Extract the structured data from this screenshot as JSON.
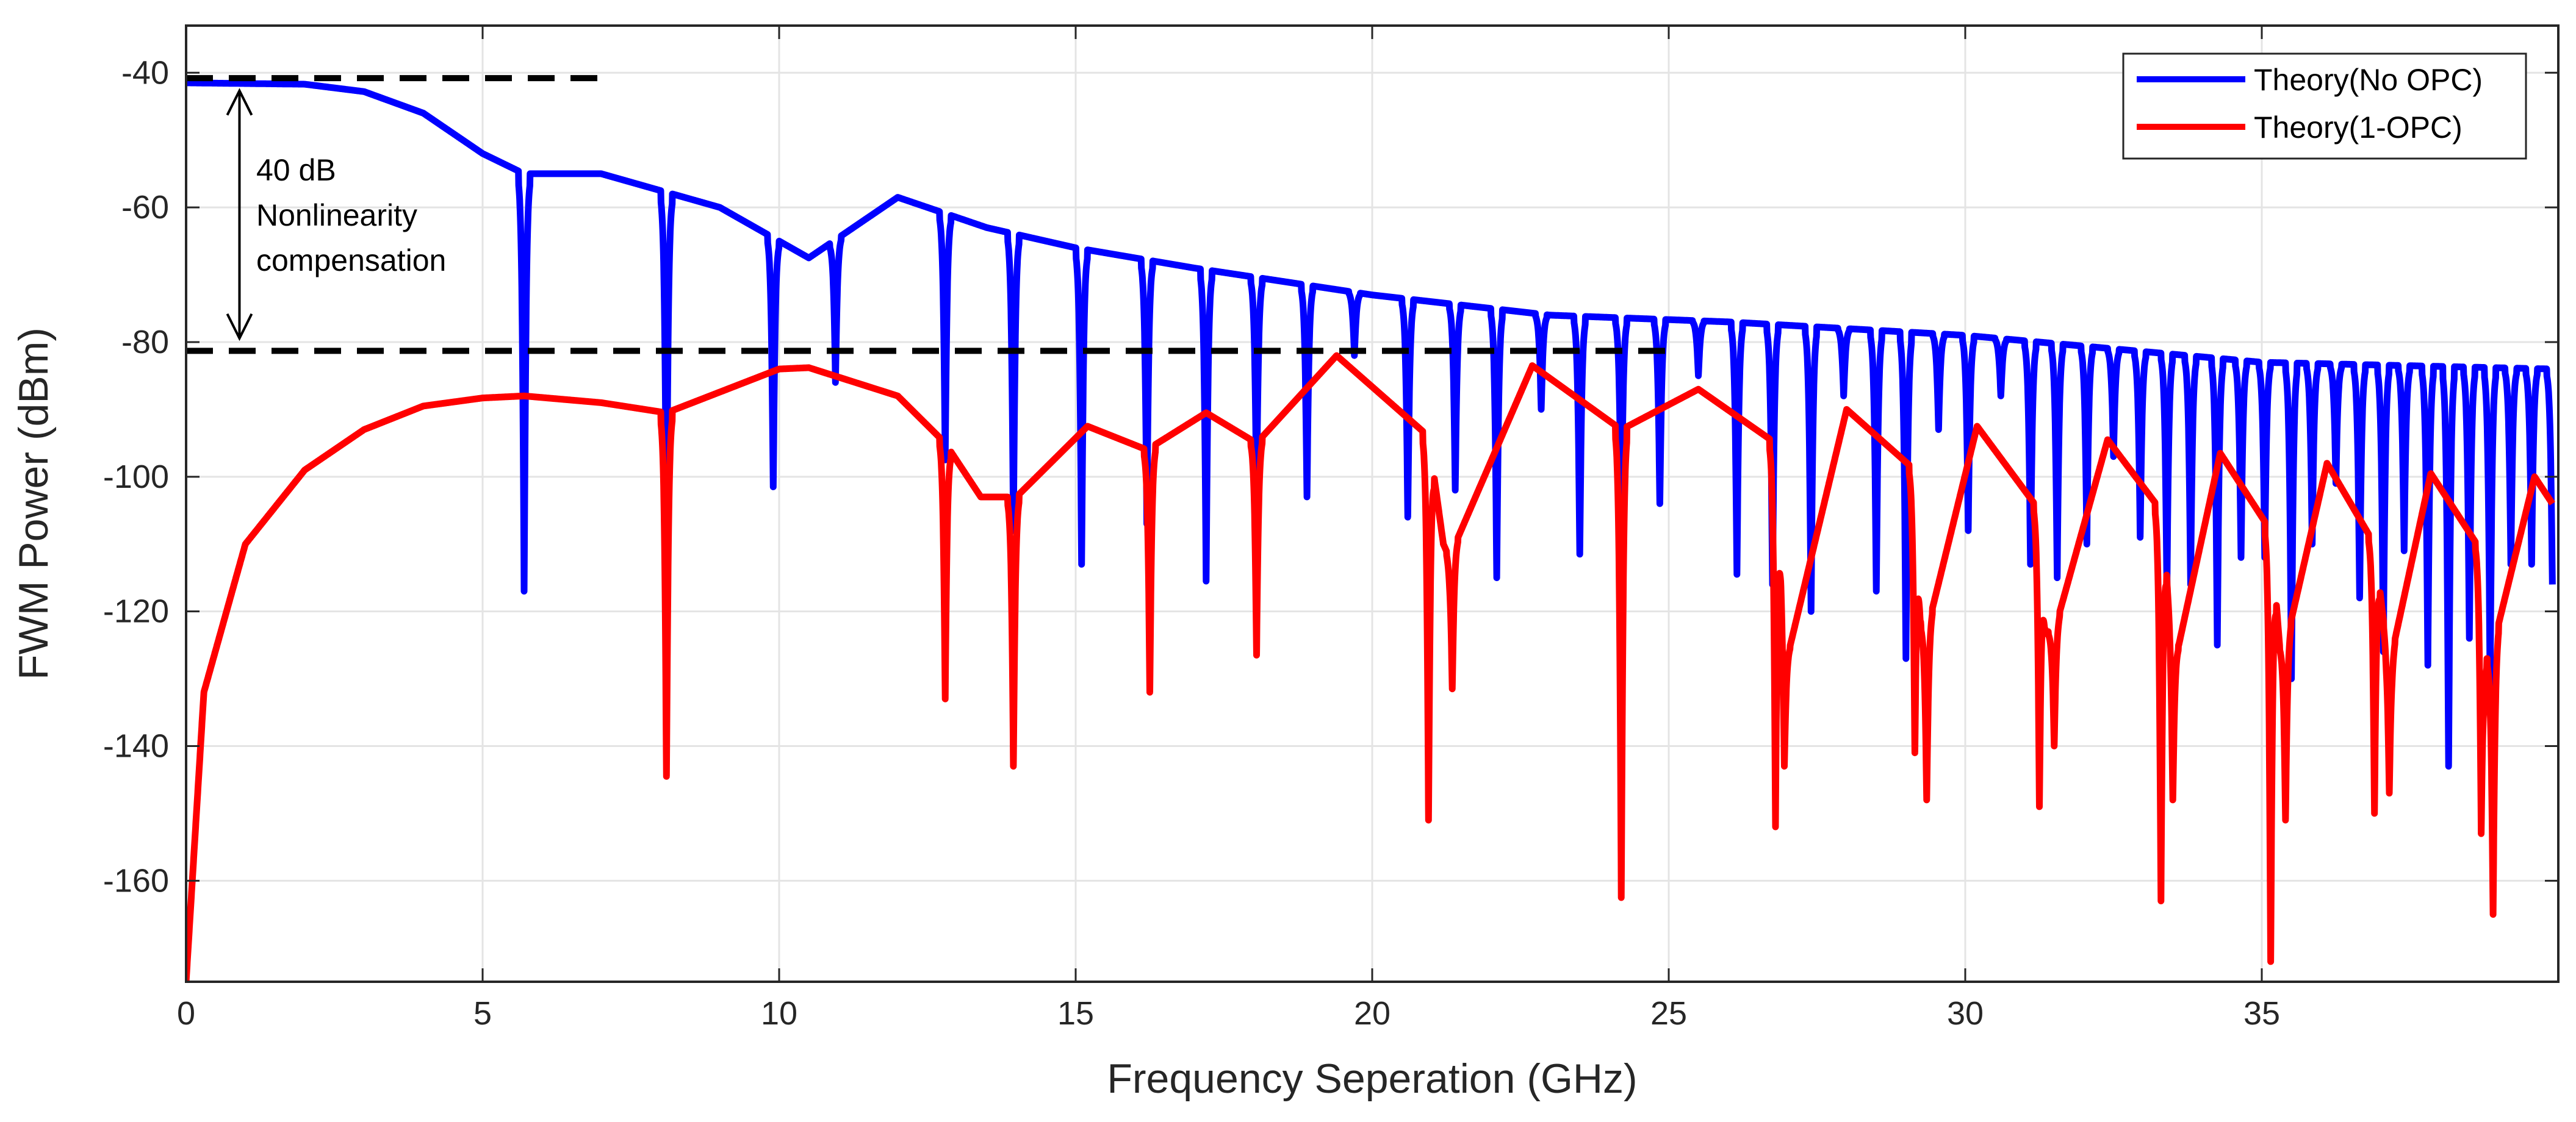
{
  "chart_data": {
    "type": "line",
    "title": "",
    "xlabel": "Frequency Seperation (GHz)",
    "ylabel": "FWM Power (dBm)",
    "xlim": [
      0,
      40
    ],
    "ylim": [
      -175,
      -33
    ],
    "x_ticks": [
      0,
      5,
      10,
      15,
      20,
      25,
      30,
      35
    ],
    "y_ticks": [
      -160,
      -140,
      -120,
      -100,
      -80,
      -60,
      -40
    ],
    "grid": true,
    "legend_position": "top-right",
    "series": [
      {
        "name": "Theory(No OPC)",
        "color": "#0000ff",
        "envelope": [
          [
            0,
            -41.5
          ],
          [
            2,
            -41.7
          ],
          [
            3,
            -42.8
          ],
          [
            4,
            -46
          ],
          [
            5,
            -52
          ],
          [
            5.7,
            -55
          ],
          [
            7,
            -55
          ],
          [
            9,
            -60
          ],
          [
            10.5,
            -67.5
          ],
          [
            12,
            -58.5
          ],
          [
            13.5,
            -63
          ],
          [
            15,
            -66
          ],
          [
            17,
            -69
          ],
          [
            20,
            -73
          ],
          [
            23,
            -76
          ],
          [
            26,
            -77
          ],
          [
            30,
            -79
          ],
          [
            35,
            -83
          ],
          [
            39.9,
            -84
          ]
        ],
        "nulls": [
          [
            5.7,
            -117
          ],
          [
            8.1,
            -110
          ],
          [
            9.9,
            -101.5
          ],
          [
            10.95,
            -86
          ],
          [
            12.8,
            -97.5
          ],
          [
            13.95,
            -108
          ],
          [
            15.1,
            -113
          ],
          [
            16.2,
            -107
          ],
          [
            17.2,
            -115.5
          ],
          [
            18.05,
            -103
          ],
          [
            18.9,
            -103
          ],
          [
            19.7,
            -82
          ],
          [
            20.6,
            -106
          ],
          [
            21.4,
            -102
          ],
          [
            22.1,
            -115
          ],
          [
            22.85,
            -90
          ],
          [
            23.5,
            -111.5
          ],
          [
            24.2,
            -108
          ],
          [
            24.85,
            -104
          ],
          [
            25.5,
            -85
          ],
          [
            26.15,
            -114.5
          ],
          [
            26.75,
            -116
          ],
          [
            27.4,
            -120
          ],
          [
            27.95,
            -88
          ],
          [
            28.5,
            -117
          ],
          [
            29,
            -127
          ],
          [
            29.55,
            -93
          ],
          [
            30.05,
            -108
          ],
          [
            30.6,
            -88
          ],
          [
            31.1,
            -113
          ],
          [
            31.55,
            -115
          ],
          [
            32.05,
            -110
          ],
          [
            32.5,
            -97
          ],
          [
            32.95,
            -109
          ],
          [
            33.4,
            -117
          ],
          [
            33.8,
            -116
          ],
          [
            34.25,
            -125
          ],
          [
            34.65,
            -112
          ],
          [
            35.05,
            -112
          ],
          [
            35.5,
            -130
          ],
          [
            35.85,
            -110
          ],
          [
            36.25,
            -101
          ],
          [
            36.65,
            -118
          ],
          [
            37.05,
            -126
          ],
          [
            37.4,
            -111
          ],
          [
            37.8,
            -128
          ],
          [
            38.15,
            -143
          ],
          [
            38.5,
            -124
          ],
          [
            38.85,
            -131
          ],
          [
            39.2,
            -113
          ],
          [
            39.55,
            -113
          ],
          [
            39.9,
            -116
          ]
        ]
      },
      {
        "name": "Theory(1-OPC)",
        "color": "#ff0000",
        "envelope": [
          [
            0,
            -175
          ],
          [
            0.3,
            -132
          ],
          [
            1,
            -110
          ],
          [
            2,
            -99
          ],
          [
            3,
            -93
          ],
          [
            4,
            -89.5
          ],
          [
            5,
            -88.3
          ],
          [
            5.7,
            -88
          ],
          [
            7,
            -89
          ],
          [
            8.1,
            -90.5
          ],
          [
            10,
            -84
          ],
          [
            10.5,
            -83.8
          ],
          [
            12,
            -88
          ],
          [
            12.8,
            -95
          ],
          [
            13.4,
            -103
          ],
          [
            14,
            -103
          ],
          [
            15.2,
            -92.5
          ],
          [
            16.2,
            -96
          ],
          [
            17.2,
            -90.5
          ],
          [
            18.05,
            -95
          ],
          [
            19.4,
            -82
          ],
          [
            20.95,
            -94
          ],
          [
            21.2,
            -110
          ],
          [
            21.3,
            -112
          ],
          [
            22.7,
            -83.5
          ],
          [
            24.2,
            -93
          ],
          [
            25.5,
            -87
          ],
          [
            26.8,
            -95
          ],
          [
            26.95,
            -126
          ],
          [
            27.05,
            -125
          ],
          [
            28,
            -90
          ],
          [
            29.15,
            -99
          ],
          [
            29.25,
            -122
          ],
          [
            29.35,
            -123
          ],
          [
            30.2,
            -92.5
          ],
          [
            31.25,
            -105
          ],
          [
            31.35,
            -123
          ],
          [
            31.5,
            -123
          ],
          [
            32.4,
            -94.5
          ],
          [
            33.3,
            -105
          ],
          [
            33.5,
            -125
          ],
          [
            33.6,
            -125
          ],
          [
            34.3,
            -96.5
          ],
          [
            35.15,
            -108
          ],
          [
            35.3,
            -125
          ],
          [
            35.4,
            -125
          ],
          [
            36.1,
            -98
          ],
          [
            36.9,
            -110
          ],
          [
            37.1,
            -125
          ],
          [
            37.2,
            -126
          ],
          [
            37.85,
            -99.5
          ],
          [
            38.7,
            -111
          ],
          [
            38.75,
            -127
          ],
          [
            38.85,
            -127
          ],
          [
            39.6,
            -100
          ],
          [
            39.9,
            -104
          ]
        ],
        "nulls": [
          [
            8.1,
            -144.5
          ],
          [
            12.8,
            -133
          ],
          [
            13.95,
            -143
          ],
          [
            16.25,
            -132
          ],
          [
            18.05,
            -126.5
          ],
          [
            20.95,
            -151
          ],
          [
            21.35,
            -131.5
          ],
          [
            24.2,
            -162.5
          ],
          [
            26.8,
            -152
          ],
          [
            26.95,
            -143
          ],
          [
            29.15,
            -141
          ],
          [
            29.35,
            -148
          ],
          [
            31.25,
            -149
          ],
          [
            31.5,
            -140
          ],
          [
            33.3,
            -163
          ],
          [
            33.5,
            -148
          ],
          [
            35.15,
            -172
          ],
          [
            35.4,
            -151
          ],
          [
            36.9,
            -150
          ],
          [
            37.15,
            -147
          ],
          [
            38.7,
            -153
          ],
          [
            38.9,
            -165
          ]
        ]
      }
    ],
    "reference_lines": [
      {
        "name": "upper-reference-line",
        "y": -40.8,
        "x_from": 0,
        "x_to": 7,
        "style": "dashed",
        "color": "#000000"
      },
      {
        "name": "lower-reference-line",
        "y": -81.3,
        "x_from": 0,
        "x_to": 25,
        "style": "dashed",
        "color": "#000000"
      }
    ],
    "annotation": {
      "lines": [
        "40 dB",
        "Nonlinearity",
        "compensation"
      ],
      "arrow": {
        "x": 0.9,
        "y_from": -42.3,
        "y_to": -79.8
      }
    }
  }
}
